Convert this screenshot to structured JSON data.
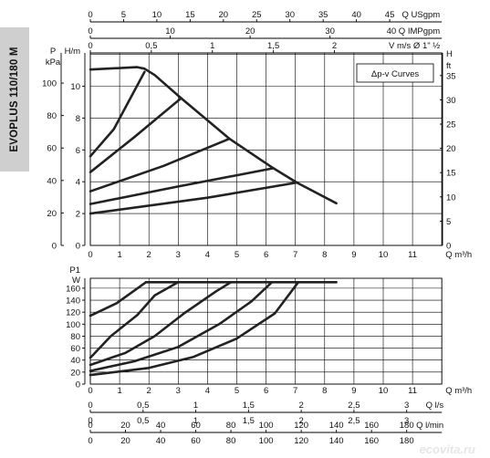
{
  "model_label": "EVOPLUS 110/180 M",
  "watermark": "ecovita.ru",
  "chart_data": [
    {
      "type": "line",
      "title": "Δp-v Curves",
      "xlabel": "Q m³/h",
      "xlim": [
        0,
        12
      ],
      "x_ticks": [
        0,
        1,
        2,
        3,
        4,
        5,
        6,
        7,
        8,
        9,
        10,
        11
      ],
      "left_axis_1": {
        "label": "H/m",
        "ticks": [
          0,
          2,
          4,
          6,
          8,
          10
        ]
      },
      "left_axis_2": {
        "label_top": "P",
        "label_bottom": "kPa",
        "ticks": [
          0,
          20,
          40,
          60,
          80,
          100
        ]
      },
      "right_axis": {
        "label_top": "H",
        "label_bottom": "ft",
        "ticks": [
          0,
          5,
          10,
          15,
          20,
          25,
          30,
          35
        ]
      },
      "ylim": [
        0,
        12
      ],
      "top_axes": [
        {
          "label": "Q USgpm",
          "ticks": [
            "0",
            "5",
            "10",
            "15",
            "20",
            "25",
            "30",
            "35",
            "40",
            "45"
          ],
          "values": [
            0,
            5,
            10,
            15,
            20,
            25,
            30,
            35,
            40,
            45
          ],
          "factor": 4.4029
        },
        {
          "label": "40 Q IMPgpm",
          "ticks": [
            "0",
            "10",
            "20",
            "30"
          ],
          "values": [
            0,
            10,
            20,
            30
          ],
          "factor": 3.6662
        },
        {
          "label": "V m/s Ø 1\" ½",
          "ticks": [
            "0",
            "0,5",
            "1",
            "1,5",
            "2"
          ],
          "values": [
            0,
            0.5,
            1,
            1.5,
            2
          ],
          "factor": 0.24
        }
      ],
      "series": [
        {
          "values": [
            [
              0,
              11.05
            ],
            [
              1.6,
              11.2
            ],
            [
              1.85,
              11.1
            ],
            [
              2.2,
              10.7
            ],
            [
              3.1,
              9.25
            ],
            [
              4.75,
              6.7
            ],
            [
              6.25,
              4.85
            ],
            [
              7.05,
              3.95
            ],
            [
              8.4,
              2.65
            ]
          ]
        },
        {
          "values": [
            [
              0,
              5.6
            ],
            [
              0.8,
              7.3
            ],
            [
              1.85,
              10.9
            ]
          ]
        },
        {
          "values": [
            [
              0,
              4.6
            ],
            [
              1.5,
              6.8
            ],
            [
              3.1,
              9.25
            ]
          ]
        },
        {
          "values": [
            [
              0,
              3.4
            ],
            [
              2.5,
              5.0
            ],
            [
              4.75,
              6.7
            ]
          ]
        },
        {
          "values": [
            [
              0,
              2.6
            ],
            [
              3.0,
              3.7
            ],
            [
              6.25,
              4.85
            ]
          ]
        },
        {
          "values": [
            [
              0,
              2.0
            ],
            [
              4.0,
              3.0
            ],
            [
              7.05,
              3.95
            ]
          ]
        }
      ]
    },
    {
      "type": "line",
      "xlabel": "Q m³/h",
      "xlim": [
        0,
        12
      ],
      "x_ticks": [
        0,
        1,
        2,
        3,
        4,
        5,
        6,
        7,
        8,
        9,
        10,
        11
      ],
      "ylabel_top": "P1",
      "ylabel": "W",
      "ylim": [
        0,
        170
      ],
      "y_ticks": [
        0,
        20,
        40,
        60,
        80,
        100,
        120,
        140,
        160
      ],
      "bottom_axes": [
        {
          "label": "Q l/s",
          "ticks": [
            "0",
            "0,5",
            "1",
            "1,5",
            "2",
            "2,5",
            "3"
          ],
          "values": [
            0,
            0.5,
            1,
            1.5,
            2,
            2.5,
            3
          ],
          "factor": 3.6
        },
        {
          "label": "Q l/min",
          "ticks": [
            "0",
            "20",
            "40",
            "60",
            "80",
            "100",
            "120",
            "140",
            "160",
            "180"
          ],
          "values": [
            0,
            20,
            40,
            60,
            80,
            100,
            120,
            140,
            160,
            180
          ],
          "factor": 0.06
        }
      ],
      "series": [
        {
          "values": [
            [
              1.9,
              170
            ],
            [
              8.4,
              170
            ]
          ]
        },
        {
          "values": [
            [
              0,
              114
            ],
            [
              0.9,
              135
            ],
            [
              1.9,
              170
            ]
          ]
        },
        {
          "values": [
            [
              0,
              44
            ],
            [
              0.7,
              80
            ],
            [
              1.6,
              115
            ],
            [
              2.2,
              148
            ],
            [
              3.0,
              170
            ]
          ]
        },
        {
          "values": [
            [
              0,
              32
            ],
            [
              1.2,
              52
            ],
            [
              2.2,
              80
            ],
            [
              3.2,
              118
            ],
            [
              4.3,
              155
            ],
            [
              4.8,
              170
            ]
          ]
        },
        {
          "values": [
            [
              0,
              22
            ],
            [
              1.5,
              38
            ],
            [
              3.0,
              62
            ],
            [
              4.4,
              100
            ],
            [
              5.5,
              138
            ],
            [
              6.2,
              170
            ]
          ]
        },
        {
          "values": [
            [
              0,
              15
            ],
            [
              2.0,
              27
            ],
            [
              3.5,
              45
            ],
            [
              5.0,
              76
            ],
            [
              6.3,
              118
            ],
            [
              7.1,
              170
            ]
          ]
        }
      ]
    }
  ]
}
